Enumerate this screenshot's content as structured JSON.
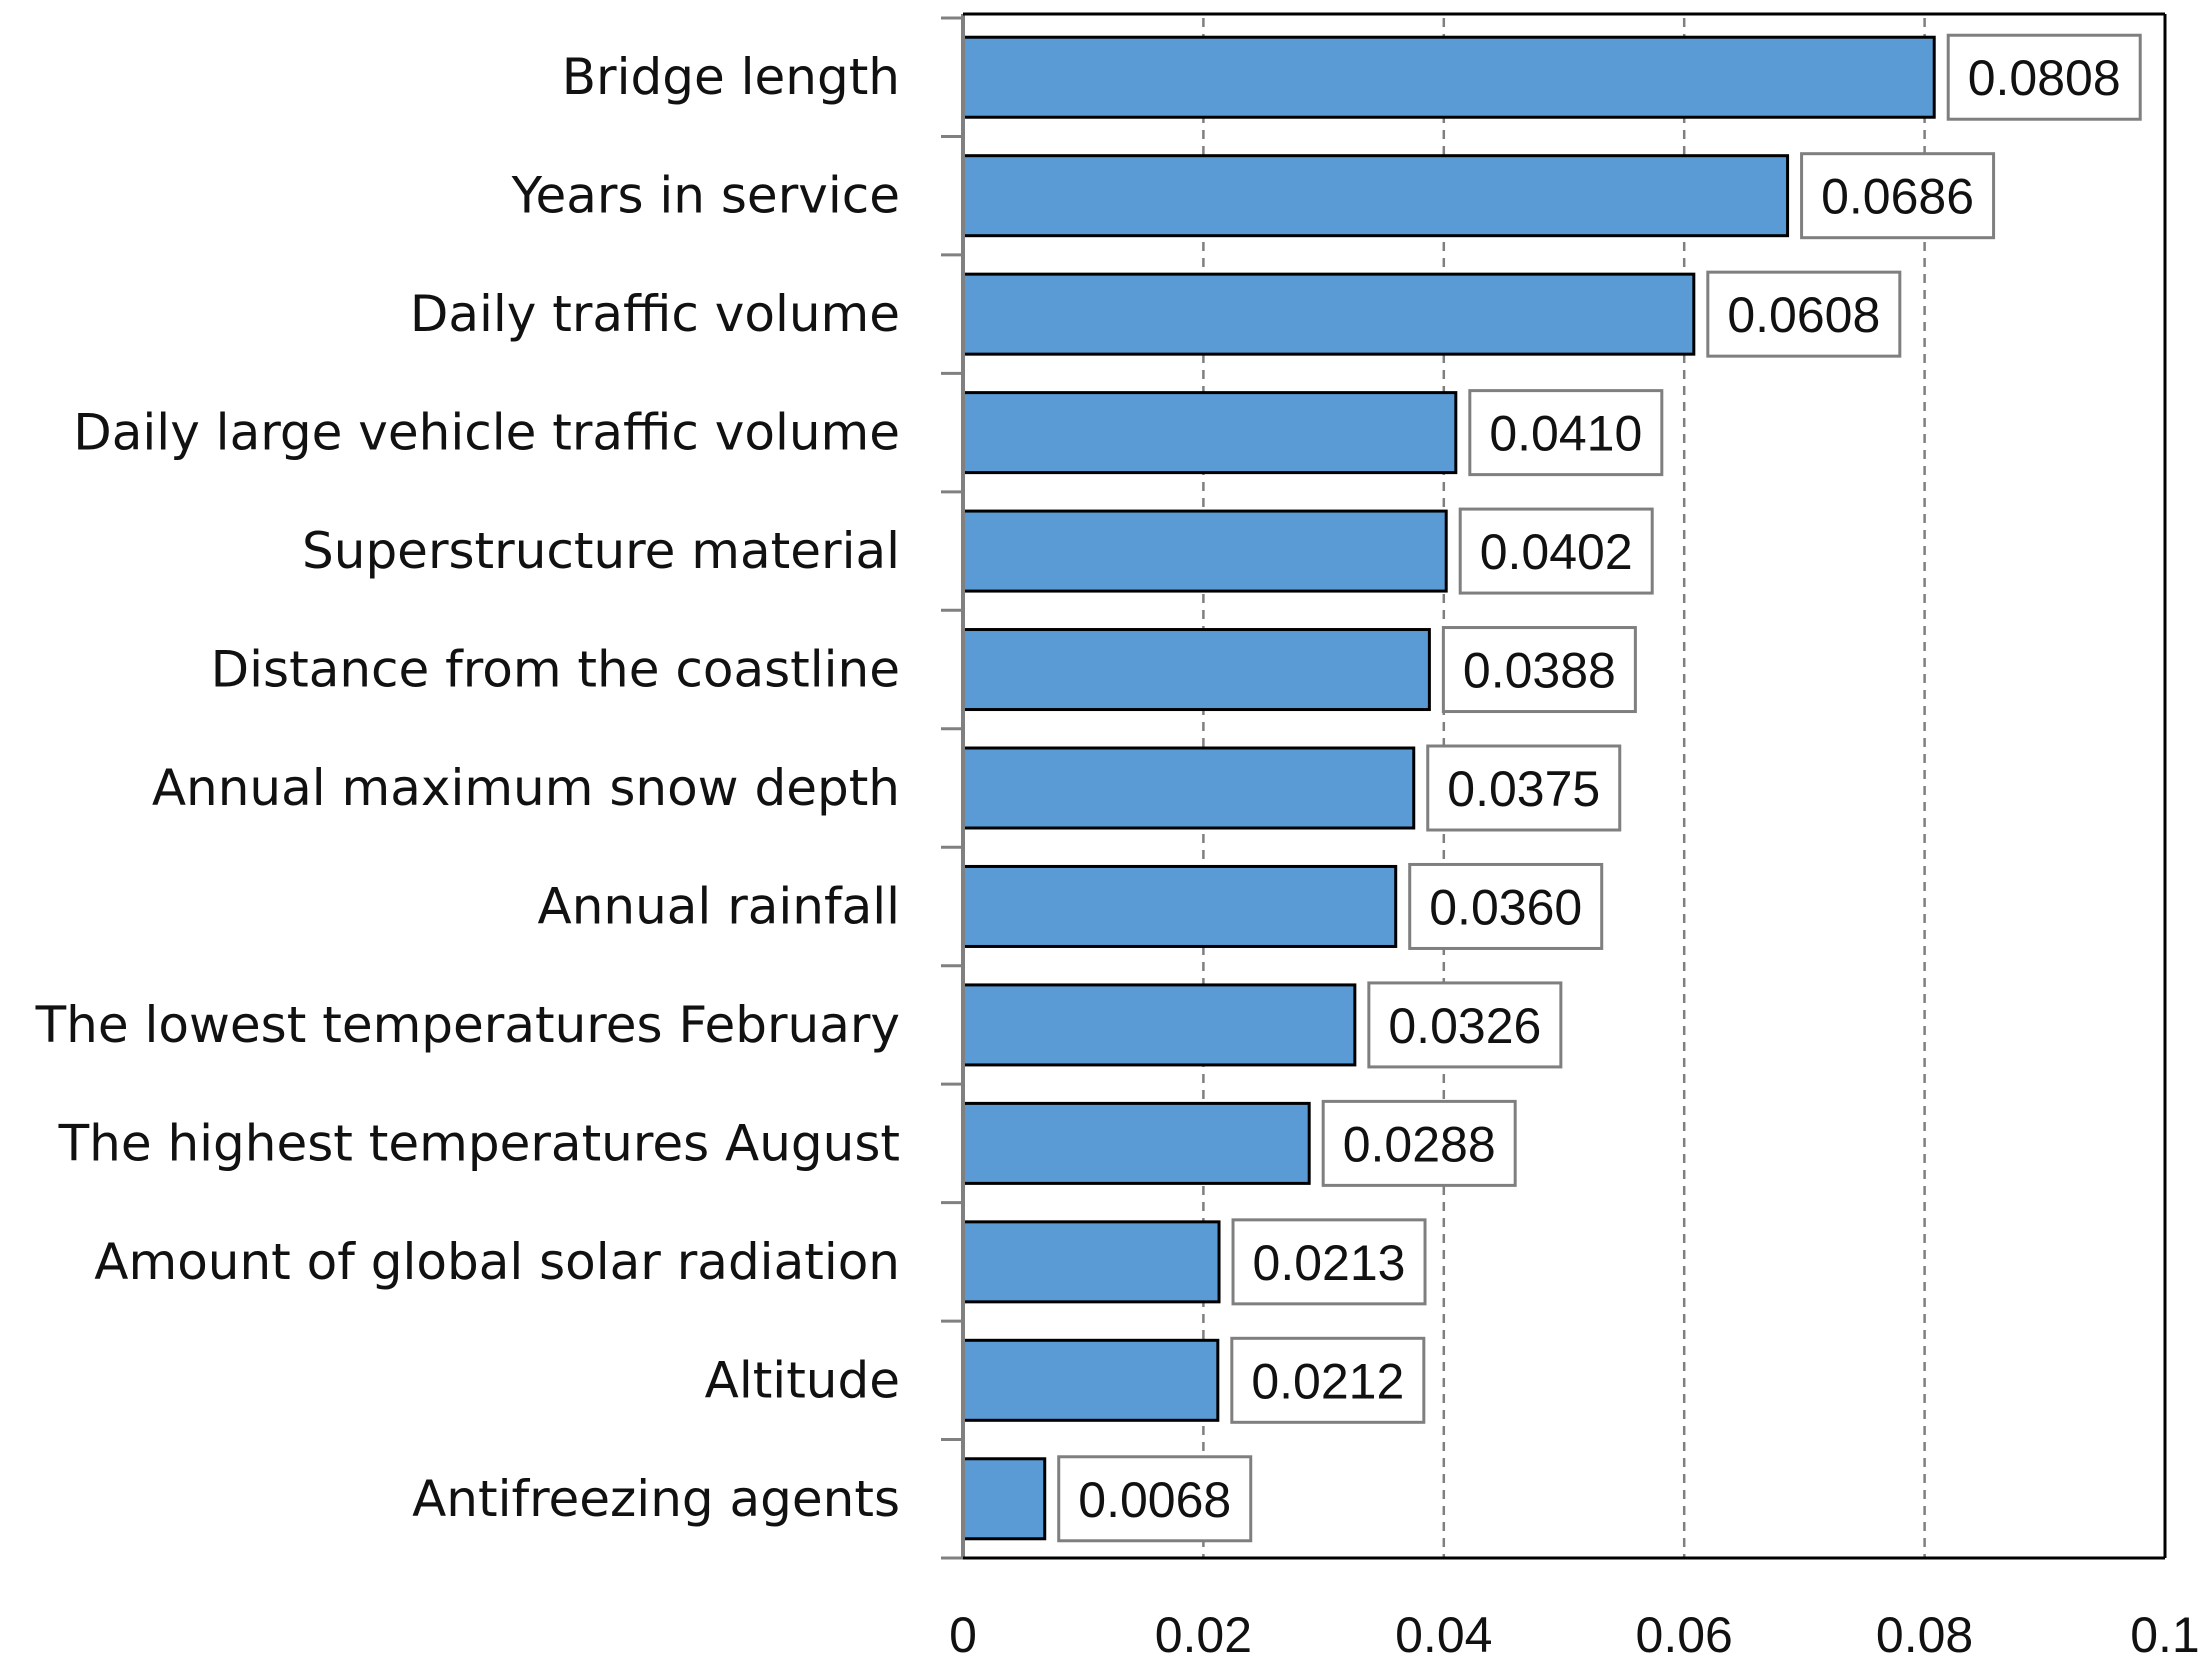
{
  "chart_data": {
    "type": "bar",
    "orientation": "horizontal",
    "categories": [
      "Bridge length",
      "Years in service",
      "Daily traffic volume",
      "Daily large vehicle traffic volume",
      "Superstructure material",
      "Distance from the coastline",
      "Annual maximum snow depth",
      "Annual rainfall",
      "The lowest temperatures February",
      "The highest temperatures August",
      "Amount of global solar radiation",
      "Altitude",
      "Antifreezing agents"
    ],
    "values": [
      0.0808,
      0.0686,
      0.0608,
      0.041,
      0.0402,
      0.0388,
      0.0375,
      0.036,
      0.0326,
      0.0288,
      0.0213,
      0.0212,
      0.0068
    ],
    "data_labels": [
      "0.0808",
      "0.0686",
      "0.0608",
      "0.0410",
      "0.0402",
      "0.0388",
      "0.0375",
      "0.0360",
      "0.0326",
      "0.0288",
      "0.0213",
      "0.0212",
      "0.0068"
    ],
    "xlim": [
      0,
      0.1
    ],
    "x_ticks": [
      0,
      0.02,
      0.04,
      0.06,
      0.08,
      0.1
    ],
    "x_tick_labels": [
      "0",
      "0.02",
      "0.04",
      "0.06",
      "0.08",
      "0.1"
    ],
    "title": "",
    "xlabel": "",
    "ylabel": "",
    "grid": "vertical dashed",
    "legend": "none",
    "colors": {
      "bar_fill": "#5b9bd5",
      "bar_stroke": "#000000",
      "grid": "#7f7f7f",
      "label_box_stroke": "#7f7f7f"
    }
  }
}
